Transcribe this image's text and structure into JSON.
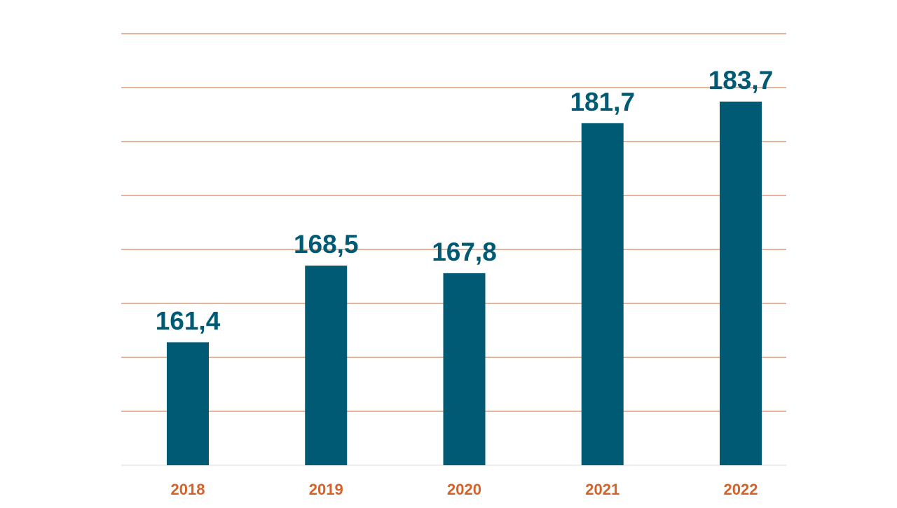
{
  "chart_data": {
    "type": "bar",
    "categories": [
      "2018",
      "2019",
      "2020",
      "2021",
      "2022"
    ],
    "values": [
      161.4,
      168.5,
      167.8,
      181.7,
      183.7
    ],
    "value_labels": [
      "161,4",
      "168,5",
      "167,8",
      "181,7",
      "183,7"
    ],
    "title": "",
    "xlabel": "",
    "ylabel": "",
    "ylim": [
      150,
      190
    ],
    "grid": true,
    "legend": "none"
  },
  "colors": {
    "bar": "#005a74",
    "value_label": "#005a74",
    "tick_label": "#d4622a",
    "gridline": "#c8693a",
    "baseline": "#d9d9d9"
  }
}
